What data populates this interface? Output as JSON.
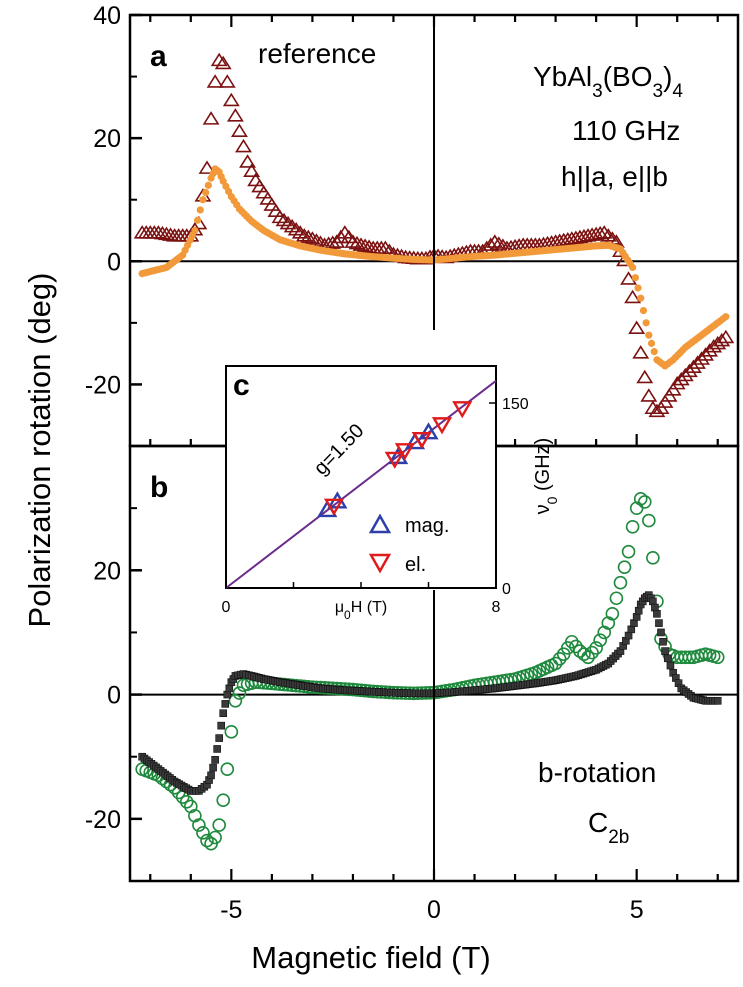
{
  "chart_data": {
    "type": "scatter",
    "xlabel": "Magnetic field (T)",
    "ylabel": "Polarization rotation (deg)",
    "xlim": [
      -7.5,
      7.5
    ],
    "x_ticks": [
      "-5",
      "0",
      "5"
    ],
    "panels": [
      {
        "label": "a",
        "annotation": "reference",
        "ylim": [
          -30,
          40
        ],
        "y_ticks": [
          "40",
          "20",
          "0",
          "-20"
        ],
        "material_parts": [
          "YbAl",
          "3",
          "(BO",
          "3",
          ")",
          "4"
        ],
        "frequency": "110 GHz",
        "geometry": "h||a, e||b",
        "series": [
          {
            "marker": "open-triangle-up",
            "color": "#7b1111",
            "x": [
              -7.2,
              -6.8,
              -6.4,
              -6.0,
              -5.8,
              -5.6,
              -5.5,
              -5.4,
              -5.3,
              -5.2,
              -5.1,
              -5.0,
              -4.8,
              -4.6,
              -4.4,
              -4.2,
              -4.0,
              -3.8,
              -3.5,
              -3.2,
              -3.0,
              -2.7,
              -2.4,
              -2.2,
              -2.0,
              -1.8,
              -1.5,
              -1.2,
              -1.0,
              -0.7,
              -0.4,
              -0.2,
              0.0,
              0.3,
              0.6,
              0.9,
              1.2,
              1.5,
              1.8,
              2.2,
              2.6,
              3.0,
              3.4,
              3.8,
              4.2,
              4.5,
              4.7,
              4.9,
              5.0,
              5.1,
              5.2,
              5.3,
              5.4,
              5.5,
              5.6,
              5.8,
              6.0,
              6.3,
              6.6,
              6.9,
              7.2
            ],
            "y": [
              4.5,
              4.5,
              4.0,
              4.0,
              6.0,
              15.0,
              23.0,
              29.0,
              32.5,
              32.0,
              29.0,
              26.0,
              21.0,
              16.0,
              13.0,
              11.0,
              9.0,
              7.0,
              5.5,
              4.0,
              3.5,
              2.5,
              3.0,
              4.5,
              3.0,
              2.5,
              2.0,
              2.0,
              1.0,
              0.5,
              0.3,
              0.3,
              0.8,
              0.5,
              1.0,
              1.5,
              1.5,
              3.0,
              2.0,
              2.5,
              2.5,
              3.0,
              3.5,
              4.0,
              4.5,
              3.0,
              0.0,
              -6.0,
              -11.0,
              -15.0,
              -19.0,
              -22.0,
              -24.0,
              -24.5,
              -24.0,
              -22.0,
              -20.0,
              -18.0,
              -16.0,
              -14.0,
              -12.5
            ]
          },
          {
            "marker": "filled-circle",
            "color": "#f2993a",
            "x": [
              -7.2,
              -6.6,
              -6.2,
              -5.9,
              -5.7,
              -5.5,
              -5.4,
              -5.3,
              -5.2,
              -5.0,
              -4.8,
              -4.5,
              -4.2,
              -3.8,
              -3.3,
              -2.8,
              -2.2,
              -1.6,
              -1.0,
              -0.5,
              0.0,
              0.5,
              1.0,
              1.5,
              2.0,
              2.5,
              3.0,
              3.5,
              4.0,
              4.3,
              4.6,
              4.9,
              5.1,
              5.3,
              5.5,
              5.7,
              5.9,
              6.2,
              6.6,
              7.0,
              7.2
            ],
            "y": [
              -2.0,
              -1.0,
              1.0,
              5.0,
              10.0,
              13.5,
              15.0,
              14.5,
              13.0,
              10.5,
              8.5,
              6.5,
              5.0,
              3.5,
              2.5,
              1.8,
              1.2,
              0.8,
              0.5,
              0.3,
              0.2,
              0.5,
              0.8,
              1.0,
              1.3,
              1.6,
              1.9,
              2.2,
              2.5,
              2.6,
              2.0,
              -1.0,
              -6.0,
              -12.0,
              -16.0,
              -17.0,
              -16.0,
              -14.0,
              -12.0,
              -10.0,
              -9.0
            ]
          }
        ]
      },
      {
        "label": "b",
        "annotation_line1": "b-rotation",
        "annotation_main": "C",
        "annotation_sub": "2b",
        "ylim": [
          -30,
          40
        ],
        "y_ticks": [
          "20",
          "0",
          "-20"
        ],
        "series": [
          {
            "marker": "open-circle",
            "color": "#1f8a3e",
            "x": [
              -7.2,
              -6.8,
              -6.4,
              -6.0,
              -5.8,
              -5.6,
              -5.5,
              -5.4,
              -5.3,
              -5.2,
              -5.1,
              -5.0,
              -4.9,
              -4.7,
              -4.4,
              -4.0,
              -3.5,
              -3.0,
              -2.5,
              -2.0,
              -1.5,
              -1.0,
              -0.5,
              0.0,
              0.5,
              1.0,
              1.5,
              2.0,
              2.5,
              3.0,
              3.2,
              3.4,
              3.6,
              3.8,
              4.0,
              4.2,
              4.4,
              4.6,
              4.8,
              4.9,
              5.0,
              5.1,
              5.2,
              5.3,
              5.4,
              5.5,
              5.6,
              5.8,
              6.0,
              6.2,
              6.4,
              6.7,
              7.0
            ],
            "y": [
              -12.0,
              -13.0,
              -15.0,
              -18.0,
              -21.0,
              -23.5,
              -24.0,
              -23.0,
              -21.0,
              -17.0,
              -12.0,
              -6.0,
              -1.0,
              1.5,
              2.0,
              1.8,
              1.5,
              1.2,
              1.0,
              0.8,
              0.5,
              0.3,
              0.2,
              0.3,
              0.8,
              1.5,
              2.0,
              2.5,
              3.5,
              5.0,
              6.5,
              8.5,
              7.0,
              6.0,
              7.5,
              10.0,
              13.0,
              18.0,
              23.0,
              27.0,
              30.0,
              31.5,
              31.0,
              28.0,
              22.0,
              15.0,
              9.0,
              6.5,
              6.0,
              6.0,
              6.0,
              6.5,
              6.0
            ]
          },
          {
            "marker": "filled-square",
            "color": "#3a3a3a",
            "x": [
              -7.2,
              -6.8,
              -6.4,
              -6.0,
              -5.8,
              -5.6,
              -5.5,
              -5.4,
              -5.3,
              -5.2,
              -5.1,
              -5.0,
              -4.9,
              -4.7,
              -4.5,
              -4.2,
              -3.8,
              -3.3,
              -2.8,
              -2.2,
              -1.6,
              -1.0,
              -0.5,
              0.0,
              0.5,
              1.0,
              1.5,
              2.0,
              2.5,
              3.0,
              3.5,
              4.0,
              4.3,
              4.6,
              4.8,
              5.0,
              5.1,
              5.2,
              5.3,
              5.4,
              5.5,
              5.6,
              5.7,
              5.9,
              6.1,
              6.4,
              6.7,
              7.0
            ],
            "y": [
              -10.0,
              -12.0,
              -14.0,
              -15.5,
              -15.5,
              -14.5,
              -13.0,
              -10.5,
              -7.0,
              -3.0,
              0.0,
              2.0,
              3.0,
              3.3,
              3.0,
              2.5,
              2.0,
              1.5,
              1.0,
              0.7,
              0.5,
              0.3,
              0.2,
              0.2,
              0.4,
              0.7,
              1.0,
              1.4,
              1.8,
              2.3,
              3.0,
              4.0,
              5.0,
              7.0,
              9.5,
              12.5,
              14.5,
              15.5,
              16.0,
              15.0,
              13.0,
              10.0,
              7.0,
              3.5,
              1.0,
              -0.5,
              -1.0,
              -1.0
            ]
          }
        ]
      }
    ],
    "inset": {
      "label": "c",
      "xlabel_prefix": "μ",
      "xlabel_sub": "0",
      "xlabel_suffix": "H (T)",
      "ylabel_prefix": "ν",
      "ylabel_sub": "0",
      "ylabel_suffix": " (GHz)",
      "xlim": [
        0,
        8
      ],
      "ylim": [
        0,
        180
      ],
      "x_ticks": [
        "0",
        "8"
      ],
      "y_ticks": [
        "0",
        "150"
      ],
      "fit_label": "g=1.50",
      "fit_line": {
        "x": [
          0,
          8
        ],
        "y": [
          0,
          168
        ]
      },
      "series": [
        {
          "name": "mag.",
          "marker": "open-triangle-up",
          "color": "#2d3fa8",
          "x": [
            3.0,
            3.3,
            5.1,
            5.6,
            6.0
          ],
          "y": [
            63,
            70,
            106,
            118,
            126
          ]
        },
        {
          "name": "el.",
          "marker": "open-triangle-down",
          "color": "#e01b1b",
          "x": [
            3.2,
            5.0,
            5.3,
            5.8,
            6.4,
            7.0
          ],
          "y": [
            67,
            105,
            112,
            121,
            133,
            146
          ]
        }
      ]
    }
  }
}
